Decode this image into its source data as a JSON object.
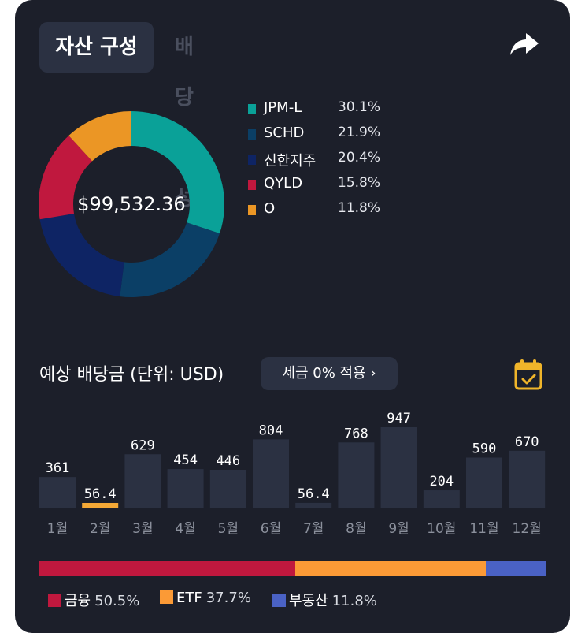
{
  "tabs": {
    "asset": "자산 구성",
    "dividend": "배당 구성"
  },
  "portfolio": {
    "total": "$99,532.36",
    "holdings": [
      {
        "name": "JPM-L",
        "pct_label": "30.1%",
        "pct": 30.1,
        "color": "#0aa198"
      },
      {
        "name": "SCHD",
        "pct_label": "21.9%",
        "pct": 21.9,
        "color": "#0b3f66"
      },
      {
        "name": "신한지주",
        "pct_label": "20.4%",
        "pct": 20.4,
        "color": "#0e2464"
      },
      {
        "name": "QYLD",
        "pct_label": "15.8%",
        "pct": 15.8,
        "color": "#c0183e"
      },
      {
        "name": "O",
        "pct_label": "11.8%",
        "pct": 11.8,
        "color": "#eb9625"
      }
    ]
  },
  "forecast": {
    "title": "예상 배당금 (단위: USD)",
    "tax_button": "세금 0% 적용 ›",
    "months": [
      "1월",
      "2월",
      "3월",
      "4월",
      "5월",
      "6월",
      "7월",
      "8월",
      "9월",
      "10월",
      "11월",
      "12월"
    ],
    "value_labels": [
      "361",
      "56.4",
      "629",
      "454",
      "446",
      "804",
      "56.4",
      "768",
      "947",
      "204",
      "590",
      "670"
    ],
    "values": [
      361,
      56.4,
      629,
      454,
      446,
      804,
      56.4,
      768,
      947,
      204,
      590,
      670
    ],
    "highlight_index": 1,
    "highlight_color": "#f4a836",
    "bar_color": "#2b3142"
  },
  "categories": [
    {
      "name": "금융",
      "pct_label": "50.5%",
      "pct": 50.5,
      "color": "#c0183e"
    },
    {
      "name": "ETF",
      "pct_label": "37.7%",
      "pct": 37.7,
      "color": "#fb9a36"
    },
    {
      "name": "부동산",
      "pct_label": "11.8%",
      "pct": 11.8,
      "color": "#4a62c5"
    }
  ],
  "icons": {
    "share": "share-arrow-icon",
    "calendar": "calendar-check-icon"
  }
}
